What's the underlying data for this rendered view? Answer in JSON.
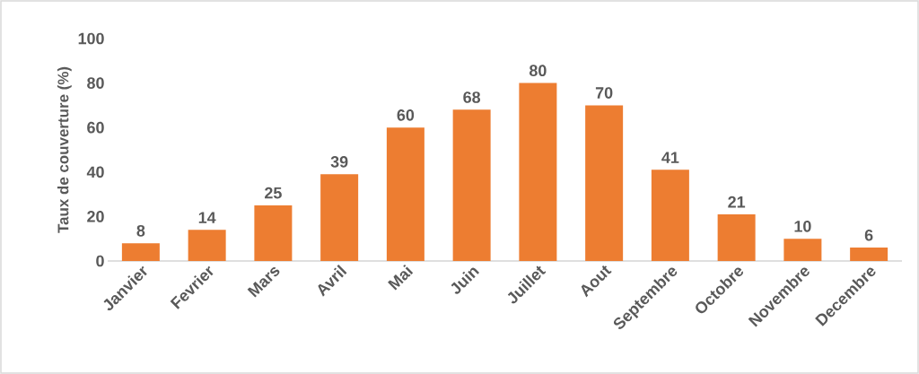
{
  "chart_data": {
    "type": "bar",
    "ylabel": "Taux de couverture (%)",
    "categories": [
      "Janvier",
      "Fevrier",
      "Mars",
      "Avril",
      "Mai",
      "Juin",
      "Juillet",
      "Aout",
      "Septembre",
      "Octobre",
      "Novembre",
      "Decembre"
    ],
    "values": [
      8,
      14,
      25,
      39,
      60,
      68,
      80,
      70,
      41,
      21,
      10,
      6
    ],
    "color": "#ed7d31",
    "ylim": [
      0,
      100
    ],
    "yticks": [
      0,
      20,
      40,
      60,
      80,
      100
    ],
    "data_labels": true
  }
}
